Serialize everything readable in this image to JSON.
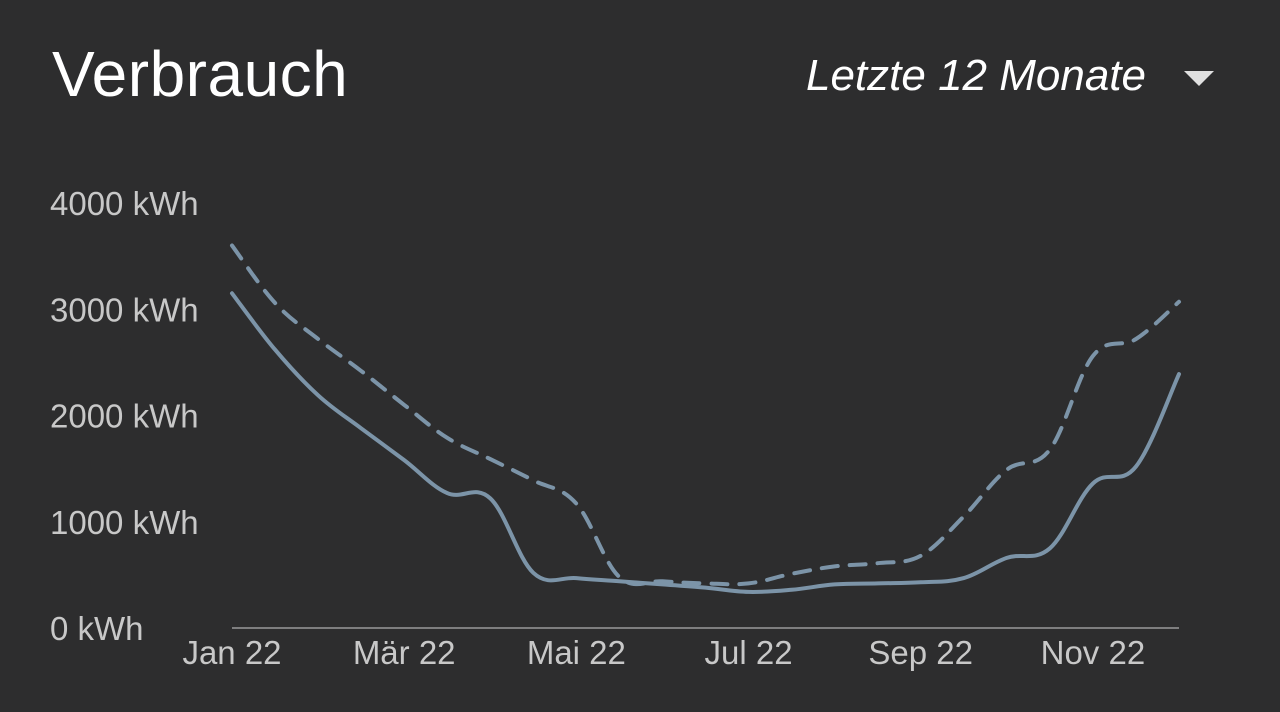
{
  "header": {
    "title": "Verbrauch",
    "range_label": "Letzte 12 Monate",
    "caret_icon": "caret-down-icon"
  },
  "chart_data": {
    "type": "line",
    "title": "Verbrauch",
    "y_unit": "kWh",
    "ylim": [
      0,
      4000
    ],
    "y_ticks": [
      {
        "value": 0,
        "label": "0 kWh"
      },
      {
        "value": 1000,
        "label": "1000 kWh"
      },
      {
        "value": 2000,
        "label": "2000 kWh"
      },
      {
        "value": 3000,
        "label": "3000 kWh"
      },
      {
        "value": 4000,
        "label": "4000 kWh"
      }
    ],
    "x_ticks": [
      {
        "value": 0,
        "label": "Jan 22"
      },
      {
        "value": 2,
        "label": "Mär 22"
      },
      {
        "value": 4,
        "label": "Mai 22"
      },
      {
        "value": 6,
        "label": "Jul 22"
      },
      {
        "value": 8,
        "label": "Sep 22"
      },
      {
        "value": 10,
        "label": "Nov 22"
      }
    ],
    "xlim": [
      0,
      11
    ],
    "grid": false,
    "legend": "none",
    "series": [
      {
        "style": "solid",
        "color": "#7c94a8",
        "x": [
          0,
          0.5,
          1,
          1.5,
          2,
          2.5,
          3,
          3.5,
          4,
          4.5,
          5,
          5.5,
          6,
          6.5,
          7,
          7.5,
          8,
          8.5,
          9,
          9.5,
          10,
          10.5,
          11
        ],
        "values": [
          3150,
          2620,
          2190,
          1880,
          1580,
          1270,
          1220,
          520,
          470,
          440,
          410,
          380,
          340,
          360,
          410,
          420,
          430,
          470,
          660,
          750,
          1360,
          1520,
          2390
        ]
      },
      {
        "style": "dashed",
        "color": "#7c94a8",
        "x": [
          0,
          0.5,
          1,
          1.5,
          2,
          2.5,
          3,
          3.5,
          4,
          4.5,
          5,
          5.5,
          6,
          6.5,
          7,
          7.5,
          8,
          8.5,
          9,
          9.5,
          10,
          10.5,
          11
        ],
        "values": [
          3600,
          3060,
          2720,
          2420,
          2100,
          1790,
          1590,
          1390,
          1170,
          480,
          440,
          420,
          420,
          510,
          580,
          610,
          680,
          1050,
          1490,
          1680,
          2560,
          2720,
          3070
        ]
      }
    ]
  }
}
